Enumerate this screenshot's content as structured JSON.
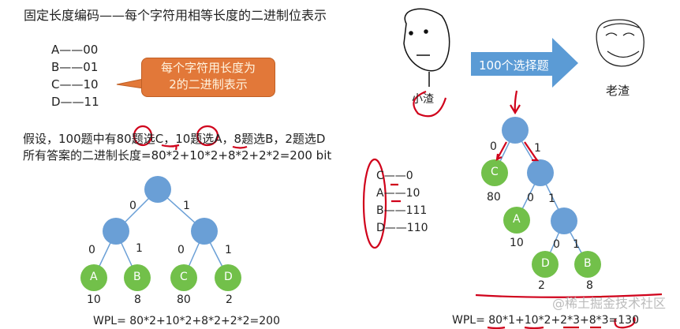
{
  "title": "固定长度编码——每个字符用相等长度的二进制位表示",
  "fixed_codes": [
    "A——00",
    "B——01",
    "C——10",
    "D——11"
  ],
  "callout": [
    "每个字符用长度为",
    "2的二进制表示"
  ],
  "question": "假设，100题中有80题选C，10题选A，8题选B，2题选D",
  "total": "所有答案的二进制长度=80*2+10*2+8*2+2*2=200 bit",
  "left_tree": {
    "edge_labels": [
      "0",
      "1",
      "0",
      "1",
      "0",
      "1"
    ],
    "leaves": [
      {
        "name": "A",
        "weight": "10"
      },
      {
        "name": "B",
        "weight": "8"
      },
      {
        "name": "C",
        "weight": "80"
      },
      {
        "name": "D",
        "weight": "2"
      }
    ],
    "wpl": "WPL= 80*2+10*2+8*2+2*2=200"
  },
  "arrow_label": "100个选择题",
  "face_left_label": "小渣",
  "face_right_label": "老渣",
  "var_codes": [
    {
      "c": "C",
      "code": "0"
    },
    {
      "c": "A",
      "code": "10"
    },
    {
      "c": "B",
      "code": "111"
    },
    {
      "c": "D",
      "code": "110"
    }
  ],
  "right_tree": {
    "edge_labels": [
      "0",
      "1",
      "0",
      "1",
      "0",
      "1"
    ],
    "leaves": [
      {
        "name": "C",
        "weight": "80"
      },
      {
        "name": "A",
        "weight": "10"
      },
      {
        "name": "D",
        "weight": "2"
      },
      {
        "name": "B",
        "weight": "8"
      }
    ],
    "wpl_prefix": "WPL= ",
    "wpl": "80*1+10*2+2*3+8*3=130"
  },
  "watermark": "@稀土掘金技术社区",
  "colors": {
    "internal_node": "#6a9fd6",
    "leaf_node": "#72c04a",
    "callout": "#e27839",
    "arrow": "#5b9bd5",
    "annotation": "#d0021b"
  }
}
